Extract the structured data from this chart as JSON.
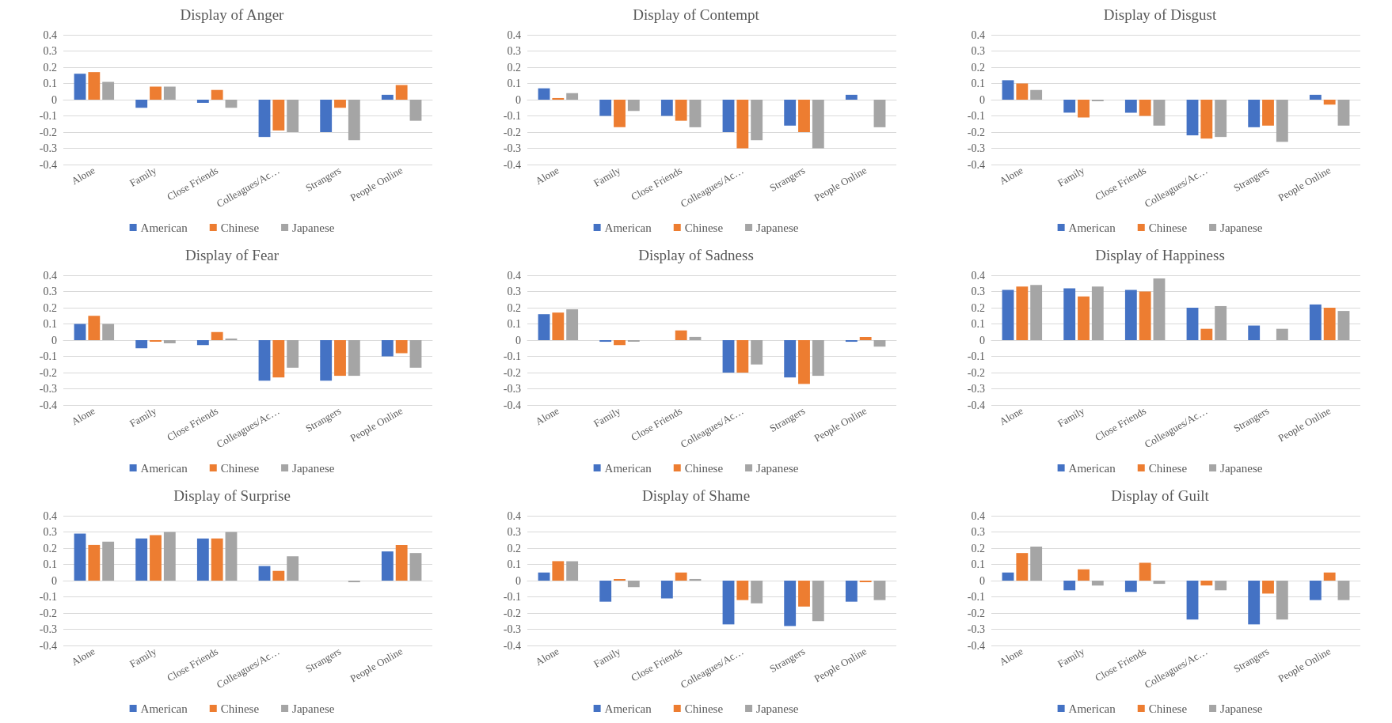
{
  "chart_data": [
    {
      "type": "bar",
      "title": "Display of Anger",
      "categories": [
        "Alone",
        "Family",
        "Close Friends",
        "Colleagues/Ac…",
        "Strangers",
        "People Online"
      ],
      "series": [
        {
          "name": "American",
          "color": "#4472c4",
          "values": [
            0.16,
            -0.05,
            -0.02,
            -0.23,
            -0.2,
            0.03
          ]
        },
        {
          "name": "Chinese",
          "color": "#ed7d31",
          "values": [
            0.17,
            0.08,
            0.06,
            -0.19,
            -0.05,
            0.09
          ]
        },
        {
          "name": "Japanese",
          "color": "#a5a5a5",
          "values": [
            0.11,
            0.08,
            -0.05,
            -0.2,
            -0.25,
            -0.13
          ]
        }
      ],
      "ylim": [
        -0.4,
        0.4
      ],
      "yticks": [
        -0.4,
        -0.3,
        -0.2,
        -0.1,
        0,
        0.1,
        0.2,
        0.3,
        0.4
      ],
      "grid": "y",
      "legend": "bottom"
    },
    {
      "type": "bar",
      "title": "Display of Contempt",
      "categories": [
        "Alone",
        "Family",
        "Close Friends",
        "Colleagues/Ac…",
        "Strangers",
        "People Online"
      ],
      "series": [
        {
          "name": "American",
          "color": "#4472c4",
          "values": [
            0.07,
            -0.1,
            -0.1,
            -0.2,
            -0.16,
            0.03
          ]
        },
        {
          "name": "Chinese",
          "color": "#ed7d31",
          "values": [
            0.01,
            -0.17,
            -0.13,
            -0.3,
            -0.2,
            0
          ]
        },
        {
          "name": "Japanese",
          "color": "#a5a5a5",
          "values": [
            0.04,
            -0.07,
            -0.17,
            -0.25,
            -0.3,
            -0.17
          ]
        }
      ],
      "ylim": [
        -0.4,
        0.4
      ],
      "yticks": [
        -0.4,
        -0.3,
        -0.2,
        -0.1,
        0,
        0.1,
        0.2,
        0.3,
        0.4
      ],
      "grid": "y",
      "legend": "bottom"
    },
    {
      "type": "bar",
      "title": "Display of Disgust",
      "categories": [
        "Alone",
        "Family",
        "Close Friends",
        "Colleagues/Ac…",
        "Strangers",
        "People Online"
      ],
      "series": [
        {
          "name": "American",
          "color": "#4472c4",
          "values": [
            0.12,
            -0.08,
            -0.08,
            -0.22,
            -0.17,
            0.03
          ]
        },
        {
          "name": "Chinese",
          "color": "#ed7d31",
          "values": [
            0.1,
            -0.11,
            -0.1,
            -0.24,
            -0.16,
            -0.03
          ]
        },
        {
          "name": "Japanese",
          "color": "#a5a5a5",
          "values": [
            0.06,
            -0.01,
            -0.16,
            -0.23,
            -0.26,
            -0.16
          ]
        }
      ],
      "ylim": [
        -0.4,
        0.4
      ],
      "yticks": [
        -0.4,
        -0.3,
        -0.2,
        -0.1,
        0,
        0.1,
        0.2,
        0.3,
        0.4
      ],
      "grid": "y",
      "legend": "bottom"
    },
    {
      "type": "bar",
      "title": "Display of Fear",
      "categories": [
        "Alone",
        "Family",
        "Close Friends",
        "Colleagues/Ac…",
        "Strangers",
        "People Online"
      ],
      "series": [
        {
          "name": "American",
          "color": "#4472c4",
          "values": [
            0.1,
            -0.05,
            -0.03,
            -0.25,
            -0.25,
            -0.1
          ]
        },
        {
          "name": "Chinese",
          "color": "#ed7d31",
          "values": [
            0.15,
            -0.01,
            0.05,
            -0.23,
            -0.22,
            -0.08
          ]
        },
        {
          "name": "Japanese",
          "color": "#a5a5a5",
          "values": [
            0.1,
            -0.02,
            0.01,
            -0.17,
            -0.22,
            -0.17
          ]
        }
      ],
      "ylim": [
        -0.4,
        0.4
      ],
      "yticks": [
        -0.4,
        -0.3,
        -0.2,
        -0.1,
        0,
        0.1,
        0.2,
        0.3,
        0.4
      ],
      "grid": "y",
      "legend": "bottom"
    },
    {
      "type": "bar",
      "title": "Display of Sadness",
      "categories": [
        "Alone",
        "Family",
        "Close Friends",
        "Colleagues/Ac…",
        "Strangers",
        "People Online"
      ],
      "series": [
        {
          "name": "American",
          "color": "#4472c4",
          "values": [
            0.16,
            -0.01,
            0,
            -0.2,
            -0.23,
            -0.01
          ]
        },
        {
          "name": "Chinese",
          "color": "#ed7d31",
          "values": [
            0.17,
            -0.03,
            0.06,
            -0.2,
            -0.27,
            0.02
          ]
        },
        {
          "name": "Japanese",
          "color": "#a5a5a5",
          "values": [
            0.19,
            -0.01,
            0.02,
            -0.15,
            -0.22,
            -0.04
          ]
        }
      ],
      "ylim": [
        -0.4,
        0.4
      ],
      "yticks": [
        -0.4,
        -0.3,
        -0.2,
        -0.1,
        0,
        0.1,
        0.2,
        0.3,
        0.4
      ],
      "grid": "y",
      "legend": "bottom"
    },
    {
      "type": "bar",
      "title": "Display of Happiness",
      "categories": [
        "Alone",
        "Family",
        "Close Friends",
        "Colleagues/Ac…",
        "Strangers",
        "People Online"
      ],
      "series": [
        {
          "name": "American",
          "color": "#4472c4",
          "values": [
            0.31,
            0.32,
            0.31,
            0.2,
            0.09,
            0.22
          ]
        },
        {
          "name": "Chinese",
          "color": "#ed7d31",
          "values": [
            0.33,
            0.27,
            0.3,
            0.07,
            0,
            0.2
          ]
        },
        {
          "name": "Japanese",
          "color": "#a5a5a5",
          "values": [
            0.34,
            0.33,
            0.38,
            0.21,
            0.07,
            0.18
          ]
        }
      ],
      "ylim": [
        -0.4,
        0.4
      ],
      "yticks": [
        -0.4,
        -0.3,
        -0.2,
        -0.1,
        0,
        0.1,
        0.2,
        0.3,
        0.4
      ],
      "grid": "y",
      "legend": "bottom"
    },
    {
      "type": "bar",
      "title": "Display of Surprise",
      "categories": [
        "Alone",
        "Family",
        "Close Friends",
        "Colleagues/Ac…",
        "Strangers",
        "People Online"
      ],
      "series": [
        {
          "name": "American",
          "color": "#4472c4",
          "values": [
            0.29,
            0.26,
            0.26,
            0.09,
            0,
            0.18
          ]
        },
        {
          "name": "Chinese",
          "color": "#ed7d31",
          "values": [
            0.22,
            0.28,
            0.26,
            0.06,
            0,
            0.22
          ]
        },
        {
          "name": "Japanese",
          "color": "#a5a5a5",
          "values": [
            0.24,
            0.3,
            0.3,
            0.15,
            -0.01,
            0.17
          ]
        }
      ],
      "ylim": [
        -0.4,
        0.4
      ],
      "yticks": [
        -0.4,
        -0.3,
        -0.2,
        -0.1,
        0,
        0.1,
        0.2,
        0.3,
        0.4
      ],
      "grid": "y",
      "legend": "bottom"
    },
    {
      "type": "bar",
      "title": "Display of Shame",
      "categories": [
        "Alone",
        "Family",
        "Close Friends",
        "Colleagues/Ac…",
        "Strangers",
        "People Online"
      ],
      "series": [
        {
          "name": "American",
          "color": "#4472c4",
          "values": [
            0.05,
            -0.13,
            -0.11,
            -0.27,
            -0.28,
            -0.13
          ]
        },
        {
          "name": "Chinese",
          "color": "#ed7d31",
          "values": [
            0.12,
            0.01,
            0.05,
            -0.12,
            -0.16,
            -0.01
          ]
        },
        {
          "name": "Japanese",
          "color": "#a5a5a5",
          "values": [
            0.12,
            -0.04,
            0.01,
            -0.14,
            -0.25,
            -0.12
          ]
        }
      ],
      "ylim": [
        -0.4,
        0.4
      ],
      "yticks": [
        -0.4,
        -0.3,
        -0.2,
        -0.1,
        0,
        0.1,
        0.2,
        0.3,
        0.4
      ],
      "grid": "y",
      "legend": "bottom"
    },
    {
      "type": "bar",
      "title": "Display of Guilt",
      "categories": [
        "Alone",
        "Family",
        "Close Friends",
        "Colleagues/Ac…",
        "Strangers",
        "People Online"
      ],
      "series": [
        {
          "name": "American",
          "color": "#4472c4",
          "values": [
            0.05,
            -0.06,
            -0.07,
            -0.24,
            -0.27,
            -0.12
          ]
        },
        {
          "name": "Chinese",
          "color": "#ed7d31",
          "values": [
            0.17,
            0.07,
            0.11,
            -0.03,
            -0.08,
            0.05
          ]
        },
        {
          "name": "Japanese",
          "color": "#a5a5a5",
          "values": [
            0.21,
            -0.03,
            -0.02,
            -0.06,
            -0.24,
            -0.12
          ]
        }
      ],
      "ylim": [
        -0.4,
        0.4
      ],
      "yticks": [
        -0.4,
        -0.3,
        -0.2,
        -0.1,
        0,
        0.1,
        0.2,
        0.3,
        0.4
      ],
      "grid": "y",
      "legend": "bottom"
    }
  ]
}
